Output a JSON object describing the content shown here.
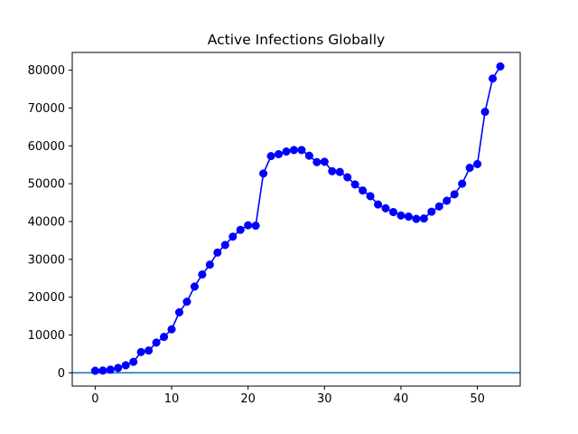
{
  "chart_data": {
    "type": "line",
    "title": "Active Infections Globally",
    "xlabel": "",
    "ylabel": "",
    "xlim": [
      -3,
      55.6
    ],
    "ylim": [
      -3500,
      84700
    ],
    "xticks": [
      0,
      10,
      20,
      30,
      40,
      50
    ],
    "yticks": [
      0,
      10000,
      20000,
      30000,
      40000,
      50000,
      60000,
      70000,
      80000
    ],
    "xtick_labels": [
      "0",
      "10",
      "20",
      "30",
      "40",
      "50"
    ],
    "ytick_labels": [
      "0",
      "10000",
      "20000",
      "30000",
      "40000",
      "50000",
      "60000",
      "70000",
      "80000"
    ],
    "grid": false,
    "legend": "none",
    "series": [
      {
        "color": "#0000ff",
        "marker": "circle",
        "x": [
          0,
          1,
          2,
          3,
          4,
          5,
          6,
          7,
          8,
          9,
          10,
          11,
          12,
          13,
          14,
          15,
          16,
          17,
          18,
          19,
          20,
          21,
          22,
          23,
          24,
          25,
          26,
          27,
          28,
          29,
          30,
          31,
          32,
          33,
          34,
          35,
          36,
          37,
          38,
          39,
          40,
          41,
          42,
          43,
          44,
          45,
          46,
          47,
          48,
          49,
          50,
          51,
          52,
          53
        ],
        "values": [
          550,
          600,
          850,
          1300,
          2000,
          2900,
          5500,
          5900,
          8000,
          9500,
          11500,
          16000,
          18800,
          22800,
          26000,
          28600,
          31800,
          33800,
          36000,
          37800,
          39000,
          38900,
          52700,
          57300,
          57800,
          58500,
          58900,
          58900,
          57400,
          55700,
          55800,
          53300,
          53100,
          51700,
          49800,
          48200,
          46700,
          44500,
          43500,
          42500,
          41600,
          41300,
          40700,
          40800,
          42600,
          44000,
          45500,
          47200,
          50000,
          54200,
          55200,
          69000,
          77800,
          81000
        ]
      },
      {
        "color": "#1f77b4",
        "marker": "none",
        "kind": "horizontal-line",
        "y": 0
      }
    ]
  }
}
